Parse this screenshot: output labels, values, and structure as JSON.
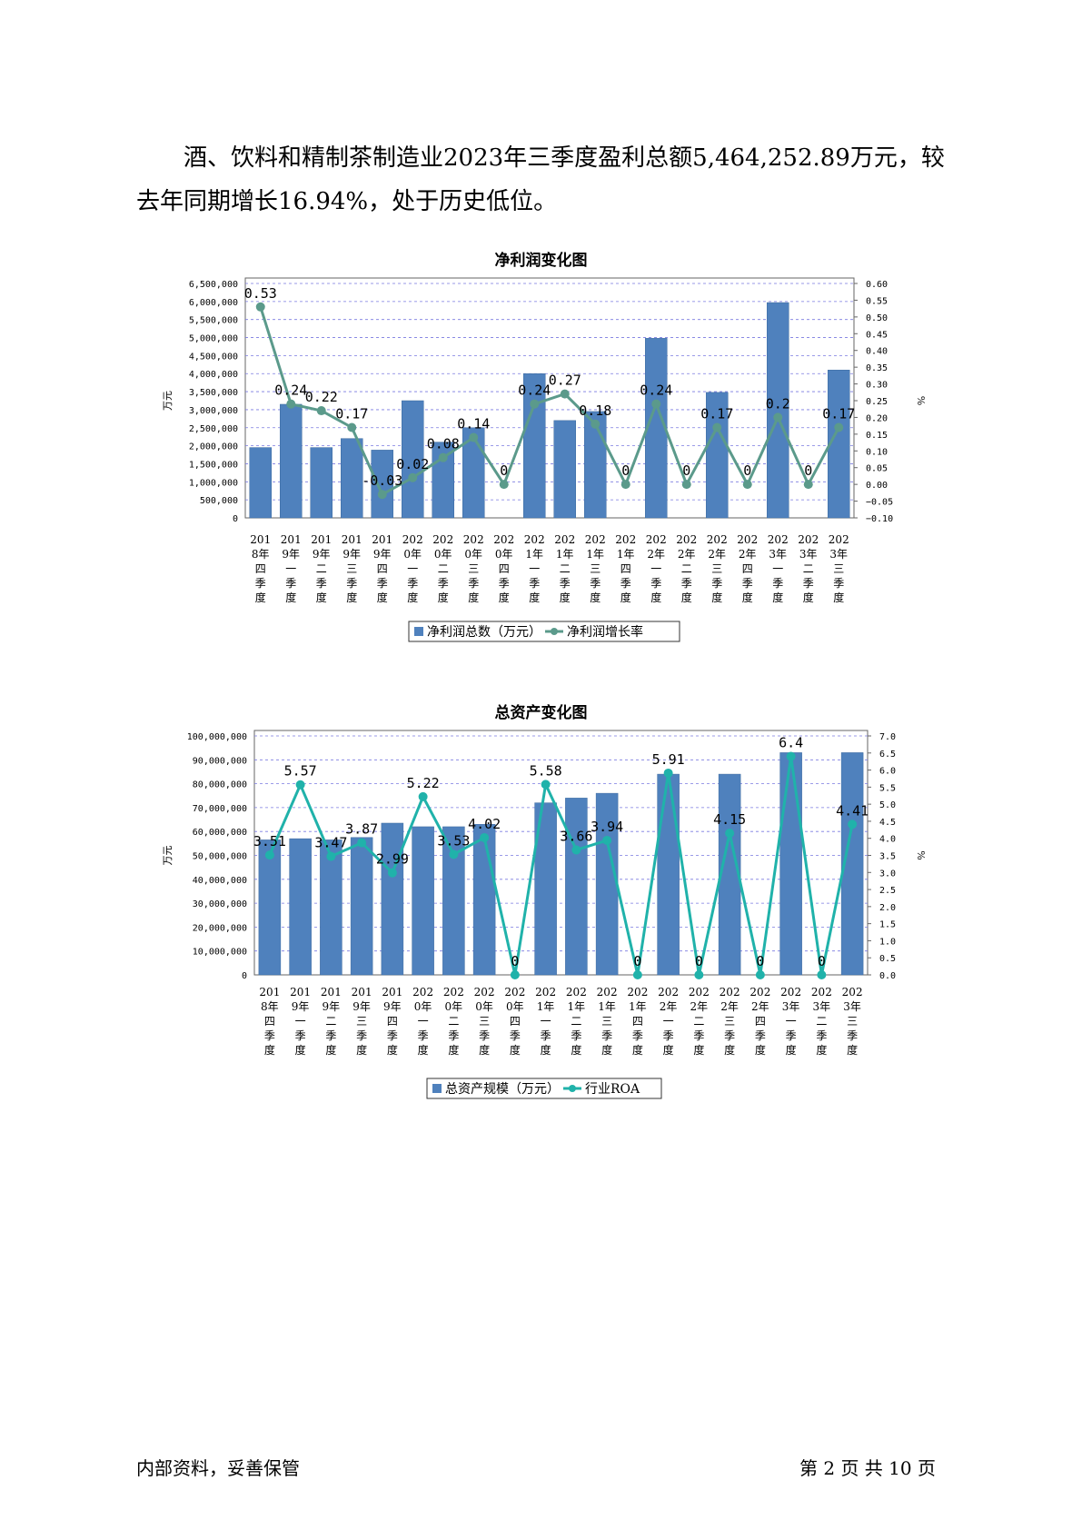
{
  "paragraph": "酒、饮料和精制茶制造业2023年三季度盈利总额5,464,252.89万元，较去年同期增长16.94%，处于历史低位。",
  "footer": {
    "left": "内部资料，妥善保管",
    "right": "第 2 页   共 10 页"
  },
  "charts": [
    {
      "title": "净利润变化图",
      "bar_color": "#4f81bd",
      "line_color": "#5b9a8b",
      "chart_data": {
        "type": "bar",
        "title": "净利润变化图",
        "ylabel": "万元",
        "y2label": "%",
        "ylim": [
          0,
          6500000
        ],
        "y2lim": [
          -0.1,
          0.6
        ],
        "yticks": [
          "6,500,000",
          "6,000,000",
          "5,500,000",
          "5,000,000",
          "4,500,000",
          "4,000,000",
          "3,500,000",
          "3,000,000",
          "2,500,000",
          "2,000,000",
          "1,500,000",
          "1,000,000",
          "500,000",
          "0"
        ],
        "y2ticks": [
          "0.60",
          "0.55",
          "0.50",
          "0.45",
          "0.40",
          "0.35",
          "0.30",
          "0.25",
          "0.20",
          "0.15",
          "0.10",
          "0.05",
          "0.00",
          "−0.05",
          "−0.10"
        ],
        "categories": [
          "2018年四季度",
          "2019年一季度",
          "2019年二季度",
          "2019年三季度",
          "2019年四季度",
          "2020年一季度",
          "2020年二季度",
          "2020年三季度",
          "2020年四季度",
          "2021年一季度",
          "2021年二季度",
          "2021年三季度",
          "2021年四季度",
          "2022年一季度",
          "2022年二季度",
          "2022年三季度",
          "2022年四季度",
          "2023年一季度",
          "2023年二季度",
          "2023年三季度"
        ],
        "series": [
          {
            "name": "净利润总数（万元）",
            "type": "bar",
            "values": [
              1950000,
              3150000,
              1950000,
              2200000,
              1880000,
              3250000,
              2100000,
              2500000,
              0,
              4000000,
              2700000,
              2950000,
              0,
              4980000,
              0,
              3480000,
              0,
              5970000,
              0,
              4100000
            ]
          },
          {
            "name": "净利润增长率",
            "type": "line",
            "values": [
              0.53,
              0.24,
              0.22,
              0.17,
              -0.03,
              0.02,
              0.08,
              0.14,
              0,
              0.24,
              0.27,
              0.18,
              0,
              0.24,
              0,
              0.17,
              0,
              0.2,
              0,
              0.17
            ],
            "labels": [
              "0.53",
              "0.24",
              "0.22",
              "0.17",
              "-0.03",
              "0.02",
              "0.08",
              "0.14",
              "0",
              "0.24",
              "0.27",
              "0.18",
              "0",
              "0.24",
              "0",
              "0.17",
              "0",
              "0.2",
              "0",
              "0.17"
            ]
          }
        ],
        "grid": true,
        "legend": "bottom"
      }
    },
    {
      "title": "总资产变化图",
      "bar_color": "#4f81bd",
      "line_color": "#20b2aa",
      "chart_data": {
        "type": "bar",
        "title": "总资产变化图",
        "ylabel": "万元",
        "y2label": "%",
        "ylim": [
          0,
          100000000
        ],
        "y2lim": [
          0,
          7.0
        ],
        "yticks": [
          "100,000,000",
          "90,000,000",
          "80,000,000",
          "70,000,000",
          "60,000,000",
          "50,000,000",
          "40,000,000",
          "30,000,000",
          "20,000,000",
          "10,000,000",
          "0"
        ],
        "y2ticks": [
          "7.0",
          "6.5",
          "6.0",
          "5.5",
          "5.0",
          "4.5",
          "4.0",
          "3.5",
          "3.0",
          "2.5",
          "2.0",
          "1.5",
          "1.0",
          "0.5",
          "0.0"
        ],
        "categories": [
          "2018年四季度",
          "2019年一季度",
          "2019年二季度",
          "2019年三季度",
          "2019年四季度",
          "2020年一季度",
          "2020年二季度",
          "2020年三季度",
          "2020年四季度",
          "2021年一季度",
          "2021年二季度",
          "2021年三季度",
          "2021年四季度",
          "2022年一季度",
          "2022年二季度",
          "2022年三季度",
          "2022年四季度",
          "2023年一季度",
          "2023年二季度",
          "2023年三季度"
        ],
        "series": [
          {
            "name": "总资产规模（万元）",
            "type": "bar",
            "values": [
              56500000,
              57000000,
              56500000,
              57500000,
              63500000,
              62000000,
              62000000,
              63000000,
              0,
              72000000,
              74000000,
              76000000,
              0,
              84000000,
              0,
              84000000,
              0,
              93000000,
              0,
              93000000
            ]
          },
          {
            "name": "行业ROA",
            "type": "line",
            "values": [
              3.51,
              5.57,
              3.47,
              3.87,
              2.99,
              5.22,
              3.53,
              4.02,
              0,
              5.58,
              3.66,
              3.94,
              0,
              5.91,
              0,
              4.15,
              0,
              6.4,
              0,
              4.41
            ],
            "labels": [
              "3.51",
              "5.57",
              "3.47",
              "3.87",
              "2.99",
              "5.22",
              "3.53",
              "4.02",
              "0",
              "5.58",
              "3.66",
              "3.94",
              "0",
              "5.91",
              "0",
              "4.15",
              "0",
              "6.4",
              "0",
              "4.41"
            ]
          }
        ],
        "grid": true,
        "legend": "bottom"
      }
    }
  ]
}
